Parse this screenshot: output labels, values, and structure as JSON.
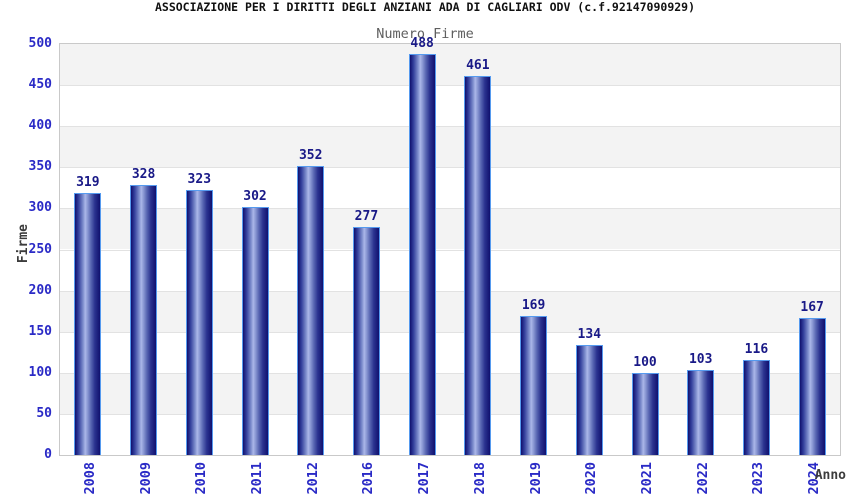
{
  "chart_data": {
    "type": "bar",
    "title": "ASSOCIAZIONE PER I DIRITTI DEGLI ANZIANI ADA DI CAGLIARI ODV (c.f.92147090929)",
    "subtitle": "Numero Firme",
    "categories": [
      "2008",
      "2009",
      "2010",
      "2011",
      "2012",
      "2016",
      "2017",
      "2018",
      "2019",
      "2020",
      "2021",
      "2022",
      "2023",
      "2024"
    ],
    "values": [
      319,
      328,
      323,
      302,
      352,
      277,
      488,
      461,
      169,
      134,
      100,
      103,
      116,
      167
    ],
    "xlabel": "Anno",
    "ylabel": "Firme",
    "ylim": [
      0,
      500
    ],
    "ytick_step": 50,
    "grid": "horizontal",
    "alternating_bands": true,
    "legend": "none",
    "colors": {
      "bar_dark": "#10106e",
      "bar_highlight": "#aab6e8",
      "bar_border": "#559aef",
      "tick_label_blue": "#2a2ac6",
      "value_label_navy": "#191987",
      "band_gray": "#f3f3f3",
      "band_white": "#ffffff",
      "gridline_gray": "#e2e2e2",
      "plot_border_gray": "#c9c9c9",
      "title_black": "#111111",
      "subtitle_gray": "#5f5f5f",
      "axis_title_gray": "#3c3c3c"
    }
  }
}
